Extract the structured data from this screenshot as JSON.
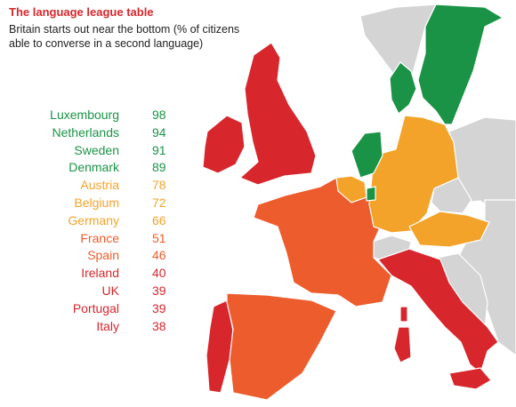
{
  "title": "The language league table",
  "subtitle": "Britain starts out near the bottom (% of citizens able to converse in a second language)",
  "colors": {
    "top_tier": "#1a9346",
    "upper_mid": "#f3a32a",
    "lower_mid": "#ec5c2c",
    "bottom_tier": "#d7262c",
    "no_data": "#d4d4d4"
  },
  "league_table": [
    {
      "country": "Luxembourg",
      "value": 98,
      "tier": "top_tier"
    },
    {
      "country": "Netherlands",
      "value": 94,
      "tier": "top_tier"
    },
    {
      "country": "Sweden",
      "value": 91,
      "tier": "top_tier"
    },
    {
      "country": "Denmark",
      "value": 89,
      "tier": "top_tier"
    },
    {
      "country": "Austria",
      "value": 78,
      "tier": "upper_mid"
    },
    {
      "country": "Belgium",
      "value": 72,
      "tier": "upper_mid"
    },
    {
      "country": "Germany",
      "value": 66,
      "tier": "upper_mid"
    },
    {
      "country": "France",
      "value": 51,
      "tier": "lower_mid"
    },
    {
      "country": "Spain",
      "value": 46,
      "tier": "lower_mid"
    },
    {
      "country": "Ireland",
      "value": 40,
      "tier": "bottom_tier"
    },
    {
      "country": "UK",
      "value": 39,
      "tier": "bottom_tier"
    },
    {
      "country": "Portugal",
      "value": 39,
      "tier": "bottom_tier"
    },
    {
      "country": "Italy",
      "value": 38,
      "tier": "bottom_tier"
    }
  ]
}
